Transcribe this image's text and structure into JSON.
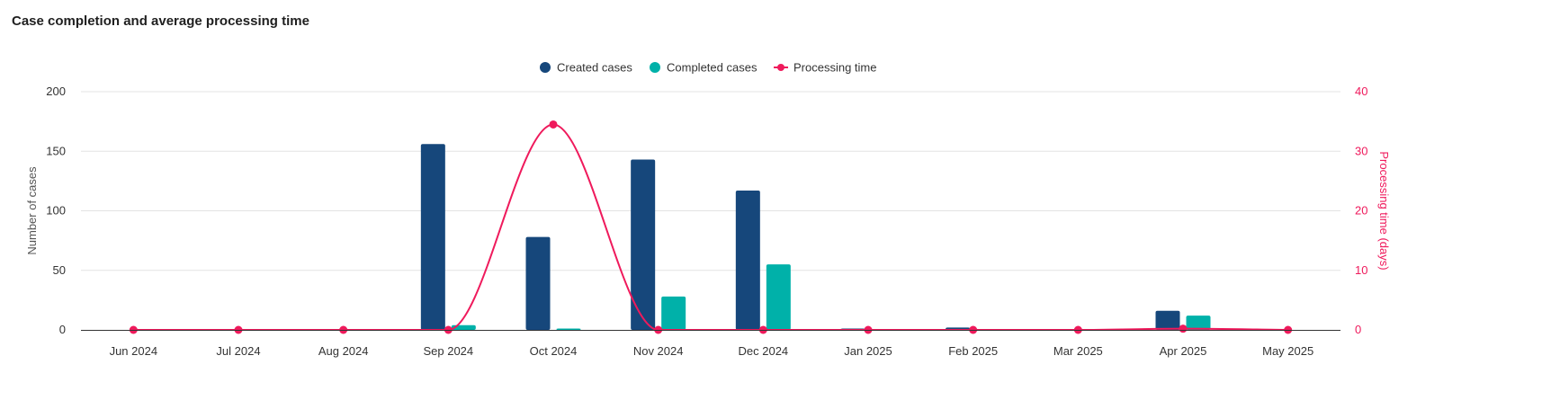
{
  "chart_data": {
    "type": "bar",
    "title": "Case completion and average processing time",
    "categories": [
      "Jun 2024",
      "Jul 2024",
      "Aug 2024",
      "Sep 2024",
      "Oct 2024",
      "Nov 2024",
      "Dec 2024",
      "Jan 2025",
      "Feb 2025",
      "Mar 2025",
      "Apr 2025",
      "May 2025"
    ],
    "series": [
      {
        "name": "Created cases",
        "kind": "bar",
        "axis": "left",
        "color": "#16477b",
        "values": [
          0,
          0,
          0,
          156,
          78,
          143,
          117,
          1,
          2,
          0,
          16,
          0
        ]
      },
      {
        "name": "Completed cases",
        "kind": "bar",
        "axis": "left",
        "color": "#00b1a9",
        "values": [
          0,
          0,
          0,
          4,
          1,
          28,
          55,
          0,
          0,
          0,
          12,
          0
        ]
      },
      {
        "name": "Processing time",
        "kind": "line",
        "axis": "right",
        "color": "#ef1a5c",
        "values": [
          0,
          0,
          0,
          0,
          34.5,
          0,
          0,
          0,
          0,
          0,
          0.2,
          0
        ]
      }
    ],
    "ylabel": "Number of cases",
    "ylim": [
      0,
      200
    ],
    "yticks": [
      0,
      50,
      100,
      150,
      200
    ],
    "y2label": "Processing time (days)",
    "y2lim": [
      0,
      40
    ],
    "y2ticks": [
      0,
      10,
      20,
      30,
      40
    ],
    "grid": true,
    "legend_position": "top-center"
  }
}
